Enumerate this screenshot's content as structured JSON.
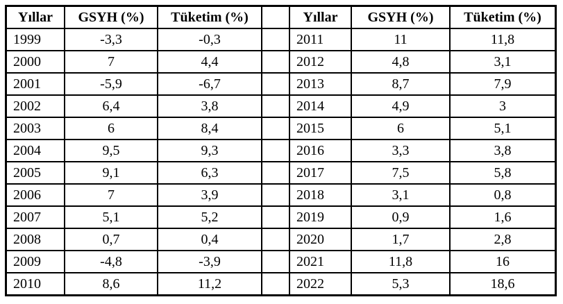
{
  "table": {
    "headers": [
      "Yıllar",
      "GSYH (%)",
      "Tüketim (%)",
      "",
      "Yıllar",
      "GSYH (%)",
      "Tüketim (%)"
    ],
    "rows": [
      [
        "1999",
        "-3,3",
        "-0,3",
        "",
        "2011",
        "11",
        "11,8"
      ],
      [
        "2000",
        "7",
        "4,4",
        "",
        "2012",
        "4,8",
        "3,1"
      ],
      [
        "2001",
        "-5,9",
        "-6,7",
        "",
        "2013",
        "8,7",
        "7,9"
      ],
      [
        "2002",
        "6,4",
        "3,8",
        "",
        "2014",
        "4,9",
        "3"
      ],
      [
        "2003",
        "6",
        "8,4",
        "",
        "2015",
        "6",
        "5,1"
      ],
      [
        "2004",
        "9,5",
        "9,3",
        "",
        "2016",
        "3,3",
        "3,8"
      ],
      [
        "2005",
        "9,1",
        "6,3",
        "",
        "2017",
        "7,5",
        "5,8"
      ],
      [
        "2006",
        "7",
        "3,9",
        "",
        "2018",
        "3,1",
        "0,8"
      ],
      [
        "2007",
        "5,1",
        "5,2",
        "",
        "2019",
        "0,9",
        "1,6"
      ],
      [
        "2008",
        "0,7",
        "0,4",
        "",
        "2020",
        "1,7",
        "2,8"
      ],
      [
        "2009",
        "-4,8",
        "-3,9",
        "",
        "2021",
        "11,8",
        "16"
      ],
      [
        "2010",
        "8,6",
        "11,2",
        "",
        "2022",
        "5,3",
        "18,6"
      ]
    ]
  },
  "chart_data": {
    "type": "table",
    "x": [
      1999,
      2000,
      2001,
      2002,
      2003,
      2004,
      2005,
      2006,
      2007,
      2008,
      2009,
      2010,
      2011,
      2012,
      2013,
      2014,
      2015,
      2016,
      2017,
      2018,
      2019,
      2020,
      2021,
      2022
    ],
    "series": [
      {
        "name": "GSYH (%)",
        "values": [
          -3.3,
          7,
          -5.9,
          6.4,
          6,
          9.5,
          9.1,
          7,
          5.1,
          0.7,
          -4.8,
          8.6,
          11,
          4.8,
          8.7,
          4.9,
          6,
          3.3,
          7.5,
          3.1,
          0.9,
          1.7,
          11.8,
          5.3
        ]
      },
      {
        "name": "Tüketim (%)",
        "values": [
          -0.3,
          4.4,
          -6.7,
          3.8,
          8.4,
          9.3,
          6.3,
          3.9,
          5.2,
          0.4,
          -3.9,
          11.2,
          11.8,
          3.1,
          7.9,
          3,
          5.1,
          3.8,
          5.8,
          0.8,
          1.6,
          2.8,
          16,
          18.6
        ]
      }
    ],
    "xlabel": "Yıllar"
  }
}
